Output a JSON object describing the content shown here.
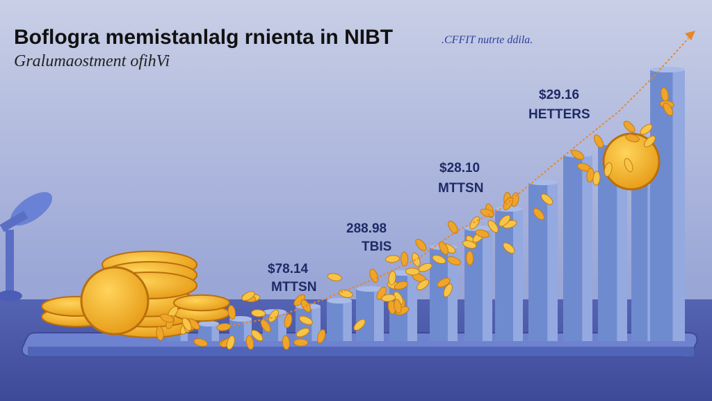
{
  "header": {
    "title": "Boflogra memistanlalg rnienta in NIBT",
    "note": ".CFFIT nutrte ddila.",
    "subtitle": "Gralumaostment ofihVi"
  },
  "labels": [
    {
      "amount": "$78.14",
      "unit": "MTTSN"
    },
    {
      "amount": "288.98",
      "unit": "TBIS"
    },
    {
      "amount": "$28.10",
      "unit": "MTTSN"
    },
    {
      "amount": "$29.16",
      "unit": "HETTERS"
    }
  ]
}
